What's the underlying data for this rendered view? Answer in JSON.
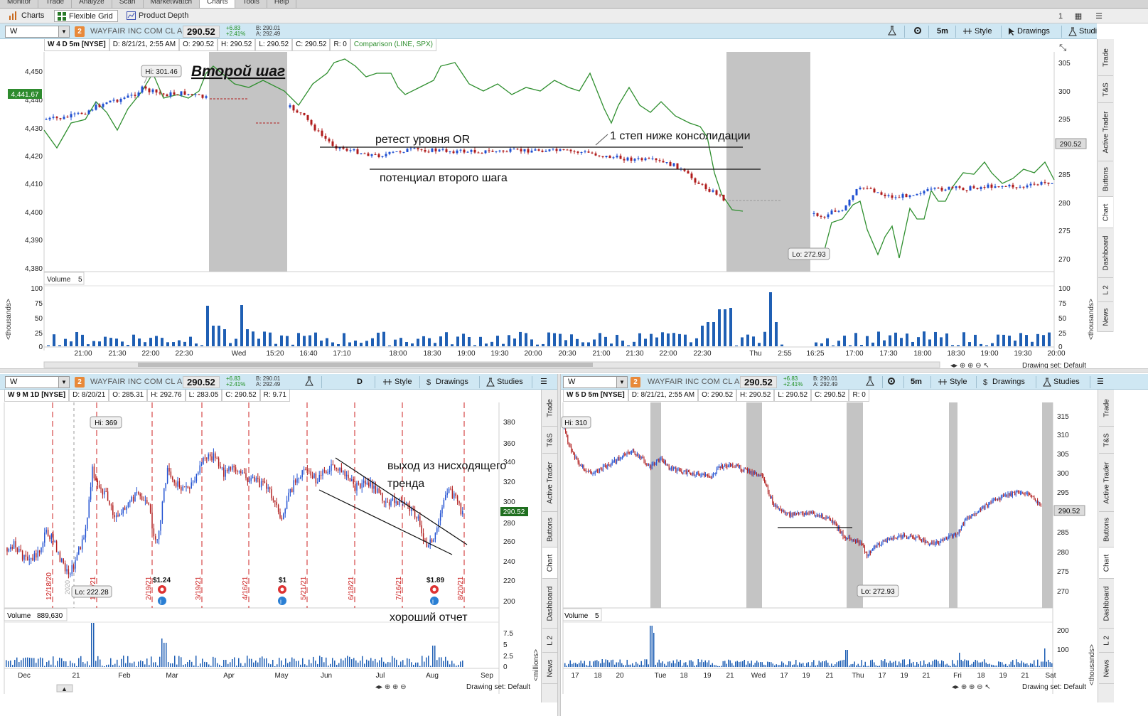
{
  "menu": {
    "items": [
      "Monitor",
      "Trade",
      "Analyze",
      "Scan",
      "MarketWatch",
      "Charts",
      "Tools",
      "Help"
    ],
    "active": "Charts"
  },
  "subtabs": {
    "charts": "Charts",
    "flexible_grid": "Flexible Grid",
    "product_depth": "Product Depth",
    "page_number": "1"
  },
  "side_tabs": [
    "Trade",
    "T&S",
    "Active Trader",
    "Buttons",
    "Chart",
    "Dashboard",
    "L 2",
    "News"
  ],
  "colors": {
    "price_line": "#2f8f2f",
    "bar_up": "#1f4fd1",
    "bar_down": "#b01c1c",
    "volume": "#1f5fb4",
    "session_shade": "#c4c4c4",
    "header_bg": "#cfe7f3",
    "accent_badge": "#e8893a"
  },
  "main_chart": {
    "symbol": "W",
    "link_group": "2",
    "company": "WAYFAIR INC COM CL A",
    "last": "290.52",
    "change": "+6.83",
    "change_pct": "+2.41%",
    "bid": "B: 290.01",
    "ask": "A: 292.49",
    "toolbar": {
      "timeframe": "5m",
      "style": "Style",
      "drawings": "Drawings",
      "studies": "Studies"
    },
    "info": {
      "descriptor": "W 4 D 5m [NYSE]",
      "date": "D: 8/21/21, 2:55 AM",
      "open": "O: 290.52",
      "high": "H: 290.52",
      "low": "L: 290.52",
      "close": "C: 290.52",
      "range": "R: 0",
      "comparison": "Comparison (LINE, SPX)"
    },
    "left_axis": [
      "4,450",
      "4,440",
      "4,430",
      "4,420",
      "4,410",
      "4,400",
      "4,390",
      "4,380"
    ],
    "right_axis": [
      "305",
      "300",
      "295",
      "290.52",
      "285",
      "280",
      "275",
      "270"
    ],
    "spx_badge": "4,441.67",
    "hi_label": "Hi: 301.46",
    "lo_label": "Lo: 272.93",
    "annotations": {
      "title": "Второй шаг",
      "retest": "ретест уровня OR",
      "below_consolidation": "1 степ ниже консолидации",
      "potential": "потенциал второго шага"
    },
    "volume_label": "Volume",
    "volume_value": "5",
    "volume_axis": [
      "100",
      "75",
      "50",
      "25",
      "0"
    ],
    "volume_unit": "<thousands>",
    "time_axis": [
      "21:00",
      "21:30",
      "22:00",
      "22:30",
      "Wed",
      "15:20",
      "16:40",
      "17:10",
      "18:00",
      "18:30",
      "19:00",
      "19:30",
      "20:00",
      "20:30",
      "21:00",
      "21:30",
      "22:00",
      "22:30",
      "Thu",
      "2:55",
      "16:25",
      "17:00",
      "17:30",
      "18:00",
      "18:30",
      "19:00",
      "19:30",
      "20:00"
    ],
    "drawing_set": "Drawing set: Default"
  },
  "daily_chart": {
    "symbol": "W",
    "link_group": "2",
    "company": "WAYFAIR INC COM CL A",
    "last": "290.52",
    "change": "+6.83",
    "change_pct": "+2.41%",
    "bid": "B: 290.01",
    "ask": "A: 292.49",
    "toolbar": {
      "timeframe": "D",
      "style": "Style",
      "drawings": "Drawings",
      "studies": "Studies"
    },
    "info": {
      "descriptor": "W 9 M 1D [NYSE]",
      "date": "D: 8/20/21",
      "open": "O: 285.31",
      "high": "H: 292.76",
      "low": "L: 283.05",
      "close": "C: 290.52",
      "range": "R: 9.71"
    },
    "right_axis": [
      "380",
      "360",
      "340",
      "320",
      "300",
      "290.52",
      "280",
      "260",
      "240",
      "220",
      "200"
    ],
    "hi_label": "Hi: 369",
    "lo_label": "Lo: 222.28",
    "earnings_dates": [
      "12/18/20",
      "1/15/21",
      "2/19/21",
      "3/19/21",
      "4/16/21",
      "5/21/21",
      "6/18/21",
      "7/16/21",
      "8/20/21"
    ],
    "year_marker": "2020",
    "earnings": [
      "$1.24",
      "$1",
      "$1.89"
    ],
    "annotations": {
      "breakout": "выход из нисходящего тренда",
      "good_report": "хороший отчет"
    },
    "volume_label": "Volume",
    "volume_value": "889,630",
    "volume_axis": [
      "7.5",
      "5",
      "2.5",
      "0"
    ],
    "volume_unit": "<millions>",
    "time_axis": [
      "Dec",
      "21",
      "Feb",
      "Mar",
      "Apr",
      "May",
      "Jun",
      "Jul",
      "Aug",
      "Sep"
    ],
    "drawing_set": "Drawing set: Default"
  },
  "fiveday_chart": {
    "symbol": "W",
    "link_group": "2",
    "company": "WAYFAIR INC COM CL A",
    "last": "290.52",
    "change": "+6.83",
    "change_pct": "+2.41%",
    "bid": "B: 290.01",
    "ask": "A: 292.49",
    "toolbar": {
      "timeframe": "5m",
      "style": "Style",
      "drawings": "Drawings",
      "studies": "Studies"
    },
    "info": {
      "descriptor": "W 5 D 5m [NYSE]",
      "date": "D: 8/21/21, 2:55 AM",
      "open": "O: 290.52",
      "high": "H: 290.52",
      "low": "L: 290.52",
      "close": "C: 290.52",
      "range": "R: 0"
    },
    "right_axis": [
      "315",
      "310",
      "305",
      "300",
      "295",
      "290.52",
      "285",
      "280",
      "275",
      "270"
    ],
    "hi_label": "Hi: 310",
    "lo_label": "Lo: 272.93",
    "volume_label": "Volume",
    "volume_value": "5",
    "volume_axis": [
      "200",
      "100"
    ],
    "volume_unit": "<thousands>",
    "time_axis": [
      "17",
      "18",
      "20",
      "Tue",
      "18",
      "19",
      "21",
      "Wed",
      "17",
      "19",
      "21",
      "Thu",
      "17",
      "19",
      "21",
      "Fri",
      "18",
      "19",
      "21",
      "Sat"
    ],
    "drawing_set": "Drawing set: Default"
  }
}
